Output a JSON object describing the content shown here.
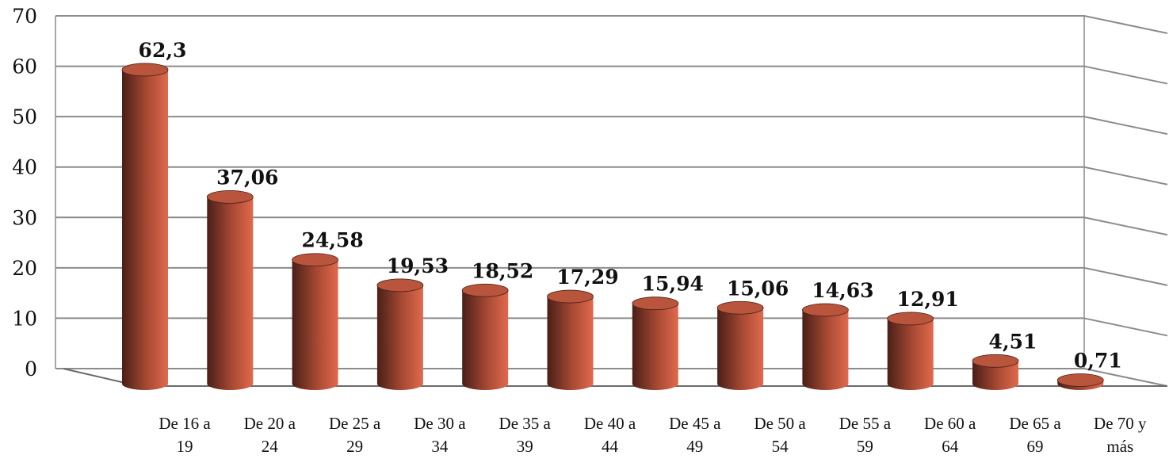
{
  "chart_data": {
    "type": "bar",
    "style": "3d-cylinder",
    "categories": [
      [
        "De 16 a",
        "19"
      ],
      [
        "De 20 a",
        "24"
      ],
      [
        "De 25 a",
        "29"
      ],
      [
        "De 30 a",
        "34"
      ],
      [
        "De 35 a",
        "39"
      ],
      [
        "De 40 a",
        "44"
      ],
      [
        "De 45 a",
        "49"
      ],
      [
        "De 50 a",
        "54"
      ],
      [
        "De 55 a",
        "59"
      ],
      [
        "De 60 a",
        "64"
      ],
      [
        "De 65 a",
        "69"
      ],
      [
        "De 70 y",
        "más"
      ]
    ],
    "values": [
      62.3,
      37.06,
      24.58,
      19.53,
      18.52,
      17.29,
      15.94,
      15.06,
      14.63,
      12.91,
      4.51,
      0.71
    ],
    "data_labels": [
      "62,3",
      "37,06",
      "24,58",
      "19,53",
      "18,52",
      "17,29",
      "15,94",
      "15,06",
      "14,63",
      "12,91",
      "4,51",
      "0,71"
    ],
    "y_ticks": [
      0,
      10,
      20,
      30,
      40,
      50,
      60,
      70
    ],
    "ylim": [
      0,
      70
    ],
    "grid": true,
    "legend": "none",
    "title": "",
    "xlabel": "",
    "ylabel": "",
    "colors": {
      "bar_dark": "#4a1f17",
      "bar_mid": "#a84a34",
      "bar_light": "#e0694d",
      "bar_top": "#b9553c",
      "gridline": "#8c8c8c",
      "axis": "#6a6a6a"
    }
  }
}
